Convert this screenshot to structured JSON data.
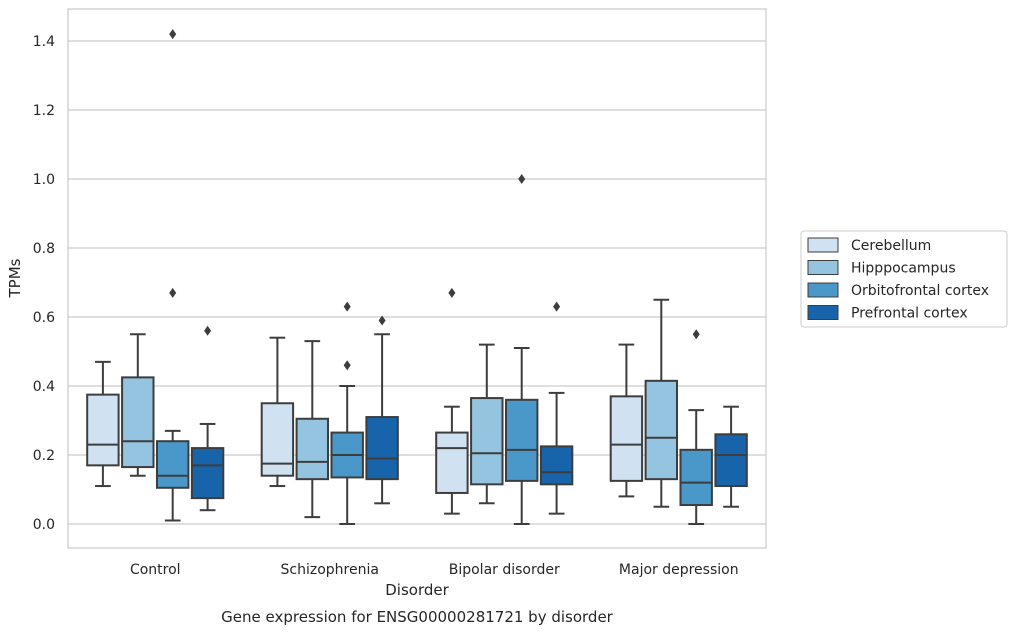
{
  "chart_data": {
    "type": "box",
    "title": "",
    "caption": "Gene expression for ENSG00000281721 by disorder",
    "xlabel": "Disorder",
    "ylabel": "TPMs",
    "ylim": [
      -0.07,
      1.49
    ],
    "yticks": [
      "0.0",
      "0.2",
      "0.4",
      "0.6",
      "0.8",
      "1.0",
      "1.2",
      "1.4"
    ],
    "grid": "horizontal",
    "legend_position": "right",
    "categories": [
      "Control",
      "Schizophrenia",
      "Bipolar disorder",
      "Major depression"
    ],
    "series": [
      {
        "name": "Cerebellum",
        "color": "#d0e1f2",
        "boxes": [
          {
            "whislo": 0.11,
            "q1": 0.17,
            "med": 0.23,
            "q3": 0.375,
            "whishi": 0.47,
            "fliers": []
          },
          {
            "whislo": 0.11,
            "q1": 0.14,
            "med": 0.175,
            "q3": 0.35,
            "whishi": 0.54,
            "fliers": []
          },
          {
            "whislo": 0.03,
            "q1": 0.09,
            "med": 0.22,
            "q3": 0.265,
            "whishi": 0.34,
            "fliers": [
              0.67
            ]
          },
          {
            "whislo": 0.08,
            "q1": 0.125,
            "med": 0.23,
            "q3": 0.37,
            "whishi": 0.52,
            "fliers": []
          }
        ]
      },
      {
        "name": "Hipppocampus",
        "color": "#94c4df",
        "boxes": [
          {
            "whislo": 0.14,
            "q1": 0.165,
            "med": 0.24,
            "q3": 0.425,
            "whishi": 0.55,
            "fliers": []
          },
          {
            "whislo": 0.02,
            "q1": 0.13,
            "med": 0.18,
            "q3": 0.305,
            "whishi": 0.53,
            "fliers": []
          },
          {
            "whislo": 0.06,
            "q1": 0.115,
            "med": 0.205,
            "q3": 0.365,
            "whishi": 0.52,
            "fliers": []
          },
          {
            "whislo": 0.05,
            "q1": 0.13,
            "med": 0.25,
            "q3": 0.415,
            "whishi": 0.65,
            "fliers": []
          }
        ]
      },
      {
        "name": "Orbitofrontal cortex",
        "color": "#4a98c9",
        "boxes": [
          {
            "whislo": 0.01,
            "q1": 0.105,
            "med": 0.14,
            "q3": 0.24,
            "whishi": 0.27,
            "fliers": [
              0.67,
              1.42
            ]
          },
          {
            "whislo": 0.0,
            "q1": 0.135,
            "med": 0.2,
            "q3": 0.265,
            "whishi": 0.4,
            "fliers": [
              0.46,
              0.63
            ]
          },
          {
            "whislo": 0.0,
            "q1": 0.125,
            "med": 0.215,
            "q3": 0.36,
            "whishi": 0.51,
            "fliers": [
              1.0
            ]
          },
          {
            "whislo": 0.0,
            "q1": 0.055,
            "med": 0.12,
            "q3": 0.215,
            "whishi": 0.33,
            "fliers": [
              0.55
            ]
          }
        ]
      },
      {
        "name": "Prefrontal cortex",
        "color": "#1764ab",
        "boxes": [
          {
            "whislo": 0.04,
            "q1": 0.075,
            "med": 0.17,
            "q3": 0.22,
            "whishi": 0.29,
            "fliers": [
              0.56
            ]
          },
          {
            "whislo": 0.06,
            "q1": 0.13,
            "med": 0.19,
            "q3": 0.31,
            "whishi": 0.55,
            "fliers": [
              0.59
            ]
          },
          {
            "whislo": 0.03,
            "q1": 0.115,
            "med": 0.15,
            "q3": 0.225,
            "whishi": 0.38,
            "fliers": [
              0.63
            ]
          },
          {
            "whislo": 0.05,
            "q1": 0.11,
            "med": 0.2,
            "q3": 0.26,
            "whishi": 0.34,
            "fliers": []
          }
        ]
      }
    ]
  }
}
